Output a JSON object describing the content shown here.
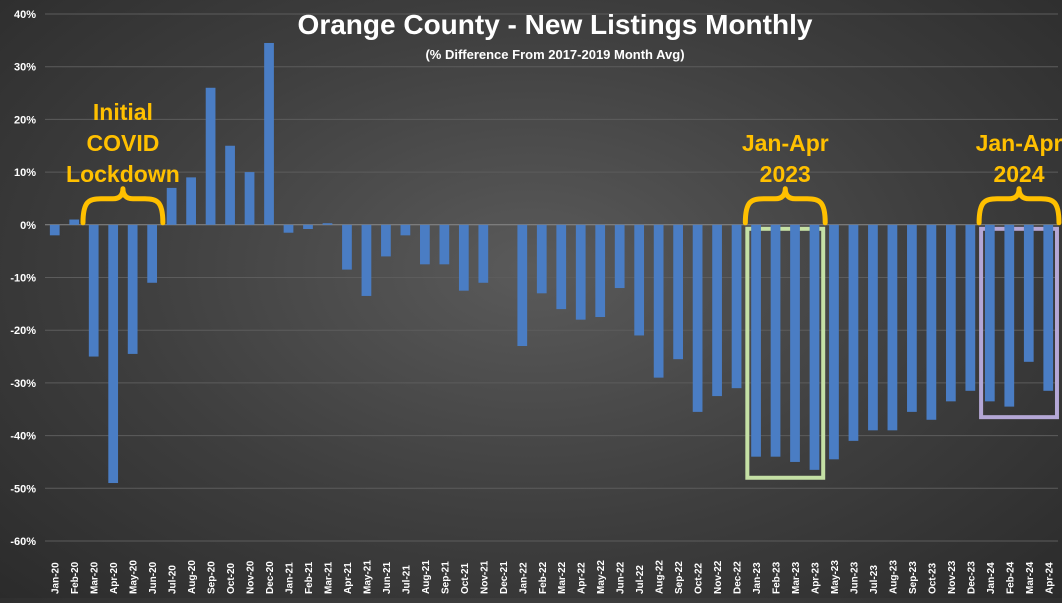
{
  "chart_data": {
    "type": "bar",
    "title": "Orange County - New Listings Monthly",
    "subtitle": "(% Difference From 2017-2019 Month Avg)",
    "xlabel": "",
    "ylabel": "",
    "ylim": [
      -60,
      40
    ],
    "yticks": [
      "40%",
      "30%",
      "20%",
      "10%",
      "0%",
      "-10%",
      "-20%",
      "-30%",
      "-40%",
      "-50%",
      "-60%"
    ],
    "ytick_values": [
      40,
      30,
      20,
      10,
      0,
      -10,
      -20,
      -30,
      -40,
      -50,
      -60
    ],
    "grid": true,
    "categories": [
      "Jan-20",
      "Feb-20",
      "Mar-20",
      "Apr-20",
      "May-20",
      "Jun-20",
      "Jul-20",
      "Aug-20",
      "Sep-20",
      "Oct-20",
      "Nov-20",
      "Dec-20",
      "Jan-21",
      "Feb-21",
      "Mar-21",
      "Apr-21",
      "May-21",
      "Jun-21",
      "Jul-21",
      "Aug-21",
      "Sep-21",
      "Oct-21",
      "Nov-21",
      "Dec-21",
      "Jan-22",
      "Feb-22",
      "Mar-22",
      "Apr-22",
      "May-22",
      "Jun-22",
      "Jul-22",
      "Aug-22",
      "Sep-22",
      "Oct-22",
      "Nov-22",
      "Dec-22",
      "Jan-23",
      "Feb-23",
      "Mar-23",
      "Apr-23",
      "May-23",
      "Jun-23",
      "Jul-23",
      "Aug-23",
      "Sep-23",
      "Oct-23",
      "Nov-23",
      "Dec-23",
      "Jan-24",
      "Feb-24",
      "Mar-24",
      "Apr-24"
    ],
    "values": [
      -2,
      1,
      -25,
      -49,
      -24.5,
      -11,
      7,
      9,
      26,
      15,
      10,
      34.5,
      -1.5,
      -0.8,
      0.3,
      -8.5,
      -13.5,
      -6,
      -2,
      -7.5,
      -7.5,
      -12.5,
      -11,
      0,
      -23,
      -13,
      -16,
      -18,
      -17.5,
      -12,
      -21,
      -29,
      -25.5,
      -35.5,
      -32.5,
      -31,
      -44,
      -44,
      -45,
      -46.5,
      -44.5,
      -41,
      -39,
      -39,
      -35.5,
      -37,
      -33.5,
      -31.5,
      -33.5,
      -34.5,
      -26,
      -31.5
    ],
    "bar_color": "#4a7dc4",
    "annotations": [
      {
        "id": "covid",
        "lines": [
          "Initial",
          "COVID",
          "Lockdown"
        ],
        "span": [
          "Mar-20",
          "Jun-20"
        ],
        "color": "#ffc000"
      },
      {
        "id": "y2023",
        "lines": [
          "Jan-Apr",
          "2023"
        ],
        "span": [
          "Jan-23",
          "Apr-23"
        ],
        "color": "#ffc000",
        "box_color": "#c5e0a5",
        "box_range": [
          0,
          -48
        ]
      },
      {
        "id": "y2024",
        "lines": [
          "Jan-Apr",
          "2024"
        ],
        "span": [
          "Jan-24",
          "Apr-24"
        ],
        "color": "#ffc000",
        "box_color": "#b4a7d6",
        "box_range": [
          0,
          -36.5
        ]
      }
    ]
  }
}
